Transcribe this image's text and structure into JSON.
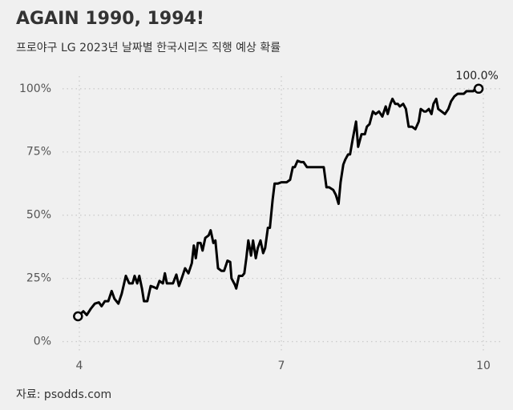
{
  "chart_data": {
    "type": "line",
    "title": "AGAIN 1990, 1994!",
    "subtitle": "프로야구 LG 2023년 날짜별 한국시리즈 직행 예상 확률",
    "source": "자료: psodds.com",
    "annotation": "100.0%",
    "color": "#000000",
    "grid": true,
    "xlim": [
      3.75,
      10.25
    ],
    "xticks": [
      4,
      7,
      10
    ],
    "ylim": [
      -9,
      105
    ],
    "yticks": [
      {
        "value": 0,
        "label": "0%"
      },
      {
        "value": 25,
        "label": "25%"
      },
      {
        "value": 50,
        "label": "50%"
      },
      {
        "value": 75,
        "label": "75%"
      },
      {
        "value": 100,
        "label": "100%"
      }
    ],
    "x": [
      3.98,
      4.06,
      4.11,
      4.17,
      4.23,
      4.29,
      4.33,
      4.38,
      4.43,
      4.48,
      4.52,
      4.58,
      4.63,
      4.69,
      4.74,
      4.79,
      4.82,
      4.86,
      4.89,
      4.93,
      4.96,
      5.01,
      5.06,
      5.11,
      5.15,
      5.19,
      5.24,
      5.27,
      5.3,
      5.35,
      5.39,
      5.44,
      5.48,
      5.52,
      5.57,
      5.62,
      5.67,
      5.7,
      5.73,
      5.76,
      5.8,
      5.83,
      5.87,
      5.92,
      5.95,
      5.99,
      6.02,
      6.06,
      6.11,
      6.15,
      6.2,
      6.24,
      6.26,
      6.31,
      6.33,
      6.37,
      6.42,
      6.45,
      6.48,
      6.51,
      6.55,
      6.58,
      6.62,
      6.65,
      6.69,
      6.73,
      6.76,
      6.8,
      6.83,
      6.87,
      6.9,
      6.95,
      7.0,
      7.04,
      7.08,
      7.13,
      7.17,
      7.2,
      7.24,
      7.29,
      7.33,
      7.38,
      7.44,
      7.52,
      7.58,
      7.63,
      7.67,
      7.71,
      7.77,
      7.81,
      7.85,
      7.88,
      7.92,
      7.95,
      7.99,
      8.02,
      8.06,
      8.11,
      8.14,
      8.19,
      8.24,
      8.27,
      8.31,
      8.36,
      8.4,
      8.45,
      8.5,
      8.55,
      8.58,
      8.62,
      8.65,
      8.69,
      8.73,
      8.76,
      8.81,
      8.85,
      8.89,
      8.94,
      8.99,
      9.04,
      9.07,
      9.12,
      9.15,
      9.19,
      9.23,
      9.26,
      9.3,
      9.33,
      9.38,
      9.43,
      9.48,
      9.52,
      9.57,
      9.62,
      9.67,
      9.71,
      9.75,
      9.8,
      9.85,
      9.88,
      9.93
    ],
    "values": [
      10,
      12,
      10.5,
      13,
      15,
      15.5,
      14,
      16,
      16,
      20,
      17,
      15,
      19,
      26,
      23,
      23,
      26,
      23,
      26,
      21,
      16,
      16,
      22,
      21.5,
      21,
      24,
      23,
      27,
      23,
      23,
      23,
      26.5,
      22,
      25,
      29,
      27,
      31,
      38,
      33,
      39,
      39,
      36,
      41,
      42,
      44,
      39,
      40,
      29,
      28,
      28,
      32,
      31.5,
      25,
      22.5,
      21,
      26,
      26,
      27,
      33,
      40,
      34,
      40,
      33,
      37,
      40,
      35,
      37,
      45,
      45,
      56,
      62.5,
      62.5,
      63,
      63,
      63,
      64,
      69,
      69,
      71.5,
      71,
      71,
      69,
      69,
      69,
      69,
      69,
      61,
      61,
      60,
      58,
      54.5,
      63,
      70,
      72,
      74,
      74,
      80,
      87,
      77,
      82,
      82,
      85,
      86,
      91,
      90,
      91,
      89,
      93,
      90,
      94,
      96,
      94,
      94,
      93,
      94,
      92,
      85,
      85,
      84,
      87,
      92,
      91,
      91,
      92,
      90,
      94,
      96,
      92,
      91,
      90,
      92,
      95,
      97,
      98,
      98,
      98,
      99,
      99,
      99,
      100,
      100
    ]
  }
}
